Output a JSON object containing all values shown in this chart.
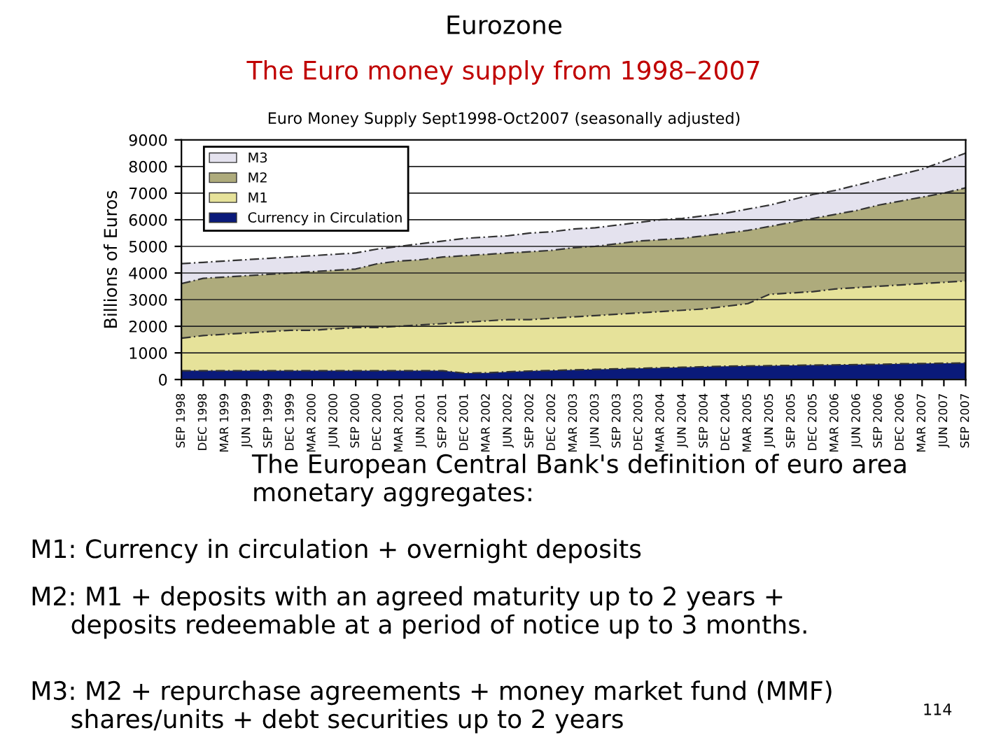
{
  "chart_data": {
    "type": "area",
    "title": "Eurozone",
    "subtitle": "The Euro money supply from 1998–2007",
    "ylabel": "Billions of Euros",
    "categories": [
      "SEP 1998",
      "DEC 1998",
      "MAR 1999",
      "JUN 1999",
      "SEP 1999",
      "DEC 1999",
      "MAR 2000",
      "JUN 2000",
      "SEP 2000",
      "DEC 2000",
      "MAR 2001",
      "JUN 2001",
      "SEP 2001",
      "DEC 2001",
      "MAR 2002",
      "JUN 2002",
      "SEP 2002",
      "DEC 2002",
      "MAR 2003",
      "JUN 2003",
      "SEP 2003",
      "DEC 2003",
      "MAR 2004",
      "JUN 2004",
      "SEP 2004",
      "DEC 2004",
      "MAR 2005",
      "JUN 2005",
      "SEP 2005",
      "DEC 2005",
      "MAR 2006",
      "JUN 2006",
      "SEP 2006",
      "DEC 2006",
      "MAR 2007",
      "JUN 2007",
      "SEP 2007"
    ],
    "series": [
      {
        "name": "M3",
        "color": "#e4e2ee",
        "values": [
          4350,
          4400,
          4450,
          4500,
          4550,
          4600,
          4650,
          4700,
          4750,
          4900,
          5000,
          5100,
          5200,
          5300,
          5350,
          5400,
          5500,
          5550,
          5650,
          5700,
          5800,
          5900,
          6000,
          6050,
          6150,
          6250,
          6400,
          6550,
          6750,
          6950,
          7100,
          7300,
          7500,
          7700,
          7900,
          8200,
          8500
        ]
      },
      {
        "name": "M2",
        "color": "#aeab7c",
        "values": [
          3600,
          3800,
          3850,
          3900,
          3950,
          4000,
          4050,
          4100,
          4150,
          4350,
          4450,
          4500,
          4600,
          4650,
          4700,
          4750,
          4800,
          4850,
          4950,
          5000,
          5100,
          5200,
          5250,
          5300,
          5400,
          5500,
          5600,
          5750,
          5900,
          6050,
          6200,
          6350,
          6550,
          6700,
          6850,
          7000,
          7200
        ]
      },
      {
        "name": "M1",
        "color": "#e6e29a",
        "values": [
          1550,
          1650,
          1700,
          1750,
          1800,
          1850,
          1850,
          1900,
          1950,
          1950,
          2000,
          2050,
          2100,
          2150,
          2200,
          2250,
          2250,
          2300,
          2350,
          2400,
          2450,
          2500,
          2550,
          2600,
          2650,
          2750,
          2850,
          3200,
          3250,
          3300,
          3400,
          3450,
          3500,
          3550,
          3600,
          3650,
          3700
        ]
      },
      {
        "name": "Currency in Circulation",
        "color": "#0a1a7a",
        "values": [
          330,
          330,
          330,
          330,
          330,
          330,
          330,
          330,
          330,
          330,
          330,
          330,
          330,
          240,
          250,
          290,
          320,
          340,
          360,
          380,
          400,
          420,
          440,
          460,
          480,
          500,
          510,
          520,
          530,
          540,
          550,
          560,
          570,
          590,
          600,
          610,
          620
        ]
      }
    ],
    "ylim": [
      0,
      9000
    ],
    "yticks": [
      0,
      1000,
      2000,
      3000,
      4000,
      5000,
      6000,
      7000,
      8000,
      9000
    ],
    "grid": "y",
    "legend": "top left",
    "annotations": [
      "Euro Money Supply Sept1998-Oct2007 (seasonally adjusted)",
      "The European Central Bank's definition of euro area\nmonetary aggregates:",
      "M1: Currency in circulation + overnight deposits",
      "M2: M1 + deposits with an agreed maturity up to 2 years +\n     deposits redeemable at a period of notice up to 3 months.",
      "M3: M2 + repurchase agreements + money market fund (MMF)\n     shares/units + debt securities up to 2 years",
      "114"
    ]
  }
}
